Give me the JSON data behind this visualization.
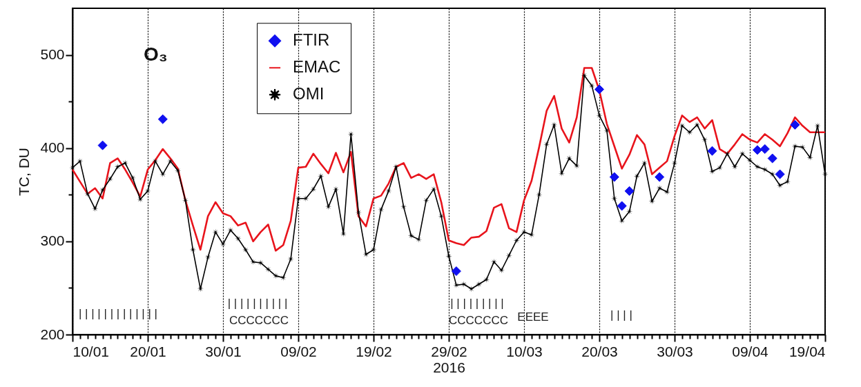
{
  "chart_data": {
    "type": "line",
    "title": "O₃",
    "xlabel": "2016",
    "ylabel": "TC, DU",
    "x": [
      "2016-01-10",
      "2016-01-11",
      "2016-01-12",
      "2016-01-13",
      "2016-01-14",
      "2016-01-15",
      "2016-01-16",
      "2016-01-17",
      "2016-01-18",
      "2016-01-19",
      "2016-01-20",
      "2016-01-21",
      "2016-01-22",
      "2016-01-23",
      "2016-01-24",
      "2016-01-25",
      "2016-01-26",
      "2016-01-27",
      "2016-01-28",
      "2016-01-29",
      "2016-01-30",
      "2016-01-31",
      "2016-02-01",
      "2016-02-02",
      "2016-02-03",
      "2016-02-04",
      "2016-02-05",
      "2016-02-06",
      "2016-02-07",
      "2016-02-08",
      "2016-02-09",
      "2016-02-10",
      "2016-02-11",
      "2016-02-12",
      "2016-02-13",
      "2016-02-14",
      "2016-02-15",
      "2016-02-16",
      "2016-02-17",
      "2016-02-18",
      "2016-02-19",
      "2016-02-20",
      "2016-02-21",
      "2016-02-22",
      "2016-02-23",
      "2016-02-24",
      "2016-02-25",
      "2016-02-26",
      "2016-02-27",
      "2016-02-28",
      "2016-02-29",
      "2016-03-01",
      "2016-03-02",
      "2016-03-03",
      "2016-03-04",
      "2016-03-05",
      "2016-03-06",
      "2016-03-07",
      "2016-03-08",
      "2016-03-09",
      "2016-03-10",
      "2016-03-11",
      "2016-03-12",
      "2016-03-13",
      "2016-03-14",
      "2016-03-15",
      "2016-03-16",
      "2016-03-17",
      "2016-03-18",
      "2016-03-19",
      "2016-03-20",
      "2016-03-21",
      "2016-03-22",
      "2016-03-23",
      "2016-03-24",
      "2016-03-25",
      "2016-03-26",
      "2016-03-27",
      "2016-03-28",
      "2016-03-29",
      "2016-03-30",
      "2016-03-31",
      "2016-04-01",
      "2016-04-02",
      "2016-04-03",
      "2016-04-04",
      "2016-04-05",
      "2016-04-06",
      "2016-04-07",
      "2016-04-08",
      "2016-04-09",
      "2016-04-10",
      "2016-04-11",
      "2016-04-12",
      "2016-04-13",
      "2016-04-14",
      "2016-04-15",
      "2016-04-16",
      "2016-04-17",
      "2016-04-18",
      "2016-04-19"
    ],
    "series": [
      {
        "name": "FTIR",
        "color": "#1010f0",
        "type": "scatter",
        "marker": "diamond",
        "x": [
          "2016-01-14",
          "2016-01-22",
          "2016-03-01",
          "2016-03-20",
          "2016-03-22",
          "2016-03-23",
          "2016-03-24",
          "2016-03-28",
          "2016-04-04",
          "2016-04-10",
          "2016-04-11",
          "2016-04-12",
          "2016-04-13",
          "2016-04-15"
        ],
        "values": [
          403,
          431,
          268,
          463,
          369,
          338,
          354,
          369,
          397,
          398,
          399,
          389,
          372,
          425
        ]
      },
      {
        "name": "EMAC",
        "color": "#e8141c",
        "marker": "none",
        "values": [
          377,
          364,
          351,
          357,
          346,
          384,
          389,
          377,
          363,
          348,
          377,
          387,
          399,
          389,
          378,
          344,
          317,
          291,
          327,
          342,
          330,
          327,
          317,
          320,
          300,
          310,
          318,
          290,
          296,
          322,
          379,
          380,
          394,
          383,
          373,
          395,
          374,
          396,
          327,
          316,
          346,
          349,
          362,
          380,
          384,
          368,
          372,
          367,
          372,
          342,
          301,
          298,
          296,
          304,
          305,
          311,
          336,
          340,
          314,
          310,
          344,
          365,
          401,
          440,
          456,
          421,
          406,
          433,
          486,
          486,
          462,
          426,
          402,
          378,
          393,
          414,
          404,
          372,
          379,
          386,
          413,
          435,
          428,
          433,
          421,
          430,
          399,
          394,
          404,
          415,
          409,
          406,
          415,
          409,
          402,
          416,
          433,
          424,
          417,
          417,
          417
        ]
      },
      {
        "name": "OMI",
        "color": "#000000",
        "marker": "star",
        "values": [
          379,
          386,
          351,
          335,
          355,
          367,
          380,
          384,
          368,
          345,
          354,
          386,
          372,
          386,
          376,
          344,
          291,
          249,
          283,
          310,
          297,
          312,
          303,
          291,
          278,
          277,
          270,
          263,
          261,
          281,
          346,
          346,
          356,
          370,
          337,
          356,
          308,
          415,
          331,
          286,
          291,
          334,
          354,
          380,
          337,
          306,
          302,
          344,
          356,
          327,
          284,
          253,
          254,
          249,
          254,
          259,
          278,
          269,
          285,
          301,
          310,
          307,
          350,
          404,
          425,
          373,
          389,
          381,
          478,
          467,
          435,
          419,
          346,
          322,
          332,
          370,
          384,
          343,
          357,
          353,
          384,
          424,
          417,
          425,
          409,
          375,
          379,
          394,
          380,
          394,
          387,
          380,
          377,
          372,
          360,
          364,
          402,
          401,
          390,
          424,
          372
        ]
      }
    ],
    "xlim": [
      "2016-01-10",
      "2016-04-19"
    ],
    "xticks": [
      {
        "value": "2016-01-10",
        "label": "10/01"
      },
      {
        "value": "2016-01-11",
        "label": null
      },
      {
        "value": "2016-01-12",
        "label": null
      },
      {
        "value": "2016-01-13",
        "label": null
      },
      {
        "value": "2016-01-14",
        "label": null
      },
      {
        "value": "2016-01-15",
        "label": null
      },
      {
        "value": "2016-01-16",
        "label": null
      },
      {
        "value": "2016-01-17",
        "label": null
      },
      {
        "value": "2016-01-18",
        "label": null
      },
      {
        "value": "2016-01-19",
        "label": null
      },
      {
        "value": "2016-01-20",
        "label": "20/01"
      },
      {
        "value": "2016-01-21",
        "label": null
      },
      {
        "value": "2016-01-22",
        "label": null
      },
      {
        "value": "2016-01-23",
        "label": null
      },
      {
        "value": "2016-01-24",
        "label": null
      },
      {
        "value": "2016-01-25",
        "label": null
      },
      {
        "value": "2016-01-26",
        "label": null
      },
      {
        "value": "2016-01-27",
        "label": null
      },
      {
        "value": "2016-01-28",
        "label": null
      },
      {
        "value": "2016-01-29",
        "label": null
      },
      {
        "value": "2016-01-30",
        "label": "30/01"
      },
      {
        "value": "2016-01-31",
        "label": null
      },
      {
        "value": "2016-02-01",
        "label": null
      },
      {
        "value": "2016-02-02",
        "label": null
      },
      {
        "value": "2016-02-03",
        "label": null
      },
      {
        "value": "2016-02-04",
        "label": null
      },
      {
        "value": "2016-02-05",
        "label": null
      },
      {
        "value": "2016-02-06",
        "label": null
      },
      {
        "value": "2016-02-07",
        "label": null
      },
      {
        "value": "2016-02-08",
        "label": null
      },
      {
        "value": "2016-02-09",
        "label": "09/02"
      },
      {
        "value": "2016-02-10",
        "label": null
      },
      {
        "value": "2016-02-11",
        "label": null
      },
      {
        "value": "2016-02-12",
        "label": null
      },
      {
        "value": "2016-02-13",
        "label": null
      },
      {
        "value": "2016-02-14",
        "label": null
      },
      {
        "value": "2016-02-15",
        "label": null
      },
      {
        "value": "2016-02-16",
        "label": null
      },
      {
        "value": "2016-02-17",
        "label": null
      },
      {
        "value": "2016-02-18",
        "label": null
      },
      {
        "value": "2016-02-19",
        "label": "19/02"
      },
      {
        "value": "2016-02-20",
        "label": null
      },
      {
        "value": "2016-02-21",
        "label": null
      },
      {
        "value": "2016-02-22",
        "label": null
      },
      {
        "value": "2016-02-23",
        "label": null
      },
      {
        "value": "2016-02-24",
        "label": null
      },
      {
        "value": "2016-02-25",
        "label": null
      },
      {
        "value": "2016-02-26",
        "label": null
      },
      {
        "value": "2016-02-27",
        "label": null
      },
      {
        "value": "2016-02-28",
        "label": null
      },
      {
        "value": "2016-02-29",
        "label": "29/02"
      },
      {
        "value": "2016-03-01",
        "label": null
      },
      {
        "value": "2016-03-02",
        "label": null
      },
      {
        "value": "2016-03-03",
        "label": null
      },
      {
        "value": "2016-03-04",
        "label": null
      },
      {
        "value": "2016-03-05",
        "label": null
      },
      {
        "value": "2016-03-06",
        "label": null
      },
      {
        "value": "2016-03-07",
        "label": null
      },
      {
        "value": "2016-03-08",
        "label": null
      },
      {
        "value": "2016-03-09",
        "label": null
      },
      {
        "value": "2016-03-10",
        "label": "10/03"
      },
      {
        "value": "2016-03-11",
        "label": null
      },
      {
        "value": "2016-03-12",
        "label": null
      },
      {
        "value": "2016-03-13",
        "label": null
      },
      {
        "value": "2016-03-14",
        "label": null
      },
      {
        "value": "2016-03-15",
        "label": null
      },
      {
        "value": "2016-03-16",
        "label": null
      },
      {
        "value": "2016-03-17",
        "label": null
      },
      {
        "value": "2016-03-18",
        "label": null
      },
      {
        "value": "2016-03-19",
        "label": null
      },
      {
        "value": "2016-03-20",
        "label": "20/03"
      },
      {
        "value": "2016-03-21",
        "label": null
      },
      {
        "value": "2016-03-22",
        "label": null
      },
      {
        "value": "2016-03-23",
        "label": null
      },
      {
        "value": "2016-03-24",
        "label": null
      },
      {
        "value": "2016-03-25",
        "label": null
      },
      {
        "value": "2016-03-26",
        "label": null
      },
      {
        "value": "2016-03-27",
        "label": null
      },
      {
        "value": "2016-03-28",
        "label": null
      },
      {
        "value": "2016-03-29",
        "label": null
      },
      {
        "value": "2016-03-30",
        "label": "30/03"
      },
      {
        "value": "2016-03-31",
        "label": null
      },
      {
        "value": "2016-04-01",
        "label": null
      },
      {
        "value": "2016-04-02",
        "label": null
      },
      {
        "value": "2016-04-03",
        "label": null
      },
      {
        "value": "2016-04-04",
        "label": null
      },
      {
        "value": "2016-04-05",
        "label": null
      },
      {
        "value": "2016-04-06",
        "label": null
      },
      {
        "value": "2016-04-07",
        "label": null
      },
      {
        "value": "2016-04-08",
        "label": null
      },
      {
        "value": "2016-04-09",
        "label": "09/04"
      },
      {
        "value": "2016-04-10",
        "label": null
      },
      {
        "value": "2016-04-11",
        "label": null
      },
      {
        "value": "2016-04-12",
        "label": null
      },
      {
        "value": "2016-04-13",
        "label": null
      },
      {
        "value": "2016-04-14",
        "label": null
      },
      {
        "value": "2016-04-15",
        "label": null
      },
      {
        "value": "2016-04-16",
        "label": null
      },
      {
        "value": "2016-04-17",
        "label": null
      },
      {
        "value": "2016-04-18",
        "label": null
      },
      {
        "value": "2016-04-19",
        "label": "19/04"
      }
    ],
    "ylim": [
      200,
      550
    ],
    "yticks": [
      200,
      {
        "value": 250,
        "label": null
      },
      300,
      {
        "value": 350,
        "label": null
      },
      400,
      {
        "value": 450,
        "label": null
      },
      500
    ],
    "grid": "x",
    "legend": "top",
    "annotations": [
      "| | | | | | | | | | | | |",
      "| | | | | | | | | |",
      "CCCCCCC",
      "| | | | | | | | |",
      "CCCCCCC",
      "EEEE",
      "| | | |"
    ]
  }
}
